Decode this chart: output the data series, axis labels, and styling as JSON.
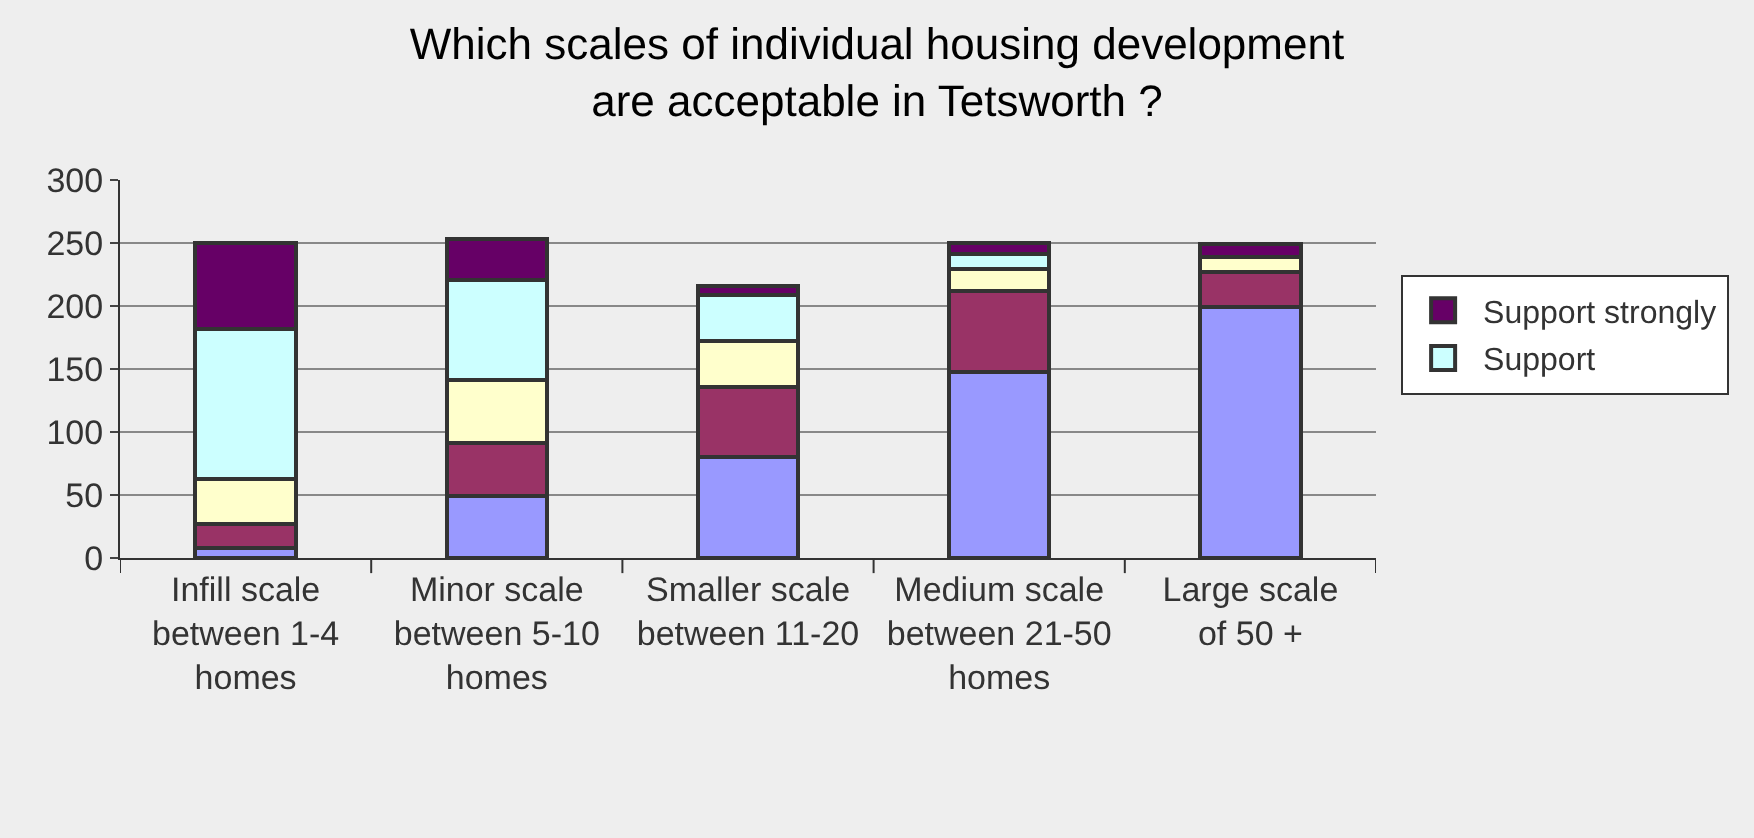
{
  "chart_data": {
    "type": "bar",
    "stacked": true,
    "title": "Which scales of individual housing development are acceptable in Tetsworth ?",
    "categories": [
      "Infill scale between 1-4 homes",
      "Minor scale between 5-10 homes",
      "Smaller scale between 11-20",
      "Medium scale between 21-50 homes",
      "Large scale of 50 +"
    ],
    "series": [
      {
        "color": "#9999ff",
        "values": [
          8,
          49,
          80,
          148,
          199
        ]
      },
      {
        "color": "#993366",
        "values": [
          19,
          42,
          56,
          64,
          28
        ]
      },
      {
        "color": "#ffffcc",
        "values": [
          36,
          50,
          36,
          17,
          12
        ]
      },
      {
        "name": "Support",
        "color": "#ccffff",
        "values": [
          119,
          80,
          37,
          12,
          0
        ]
      },
      {
        "name": "Support strongly",
        "color": "#660066",
        "values": [
          68,
          32,
          7,
          9,
          10
        ]
      }
    ],
    "ylim": [
      0,
      300
    ],
    "yticks": [
      0,
      50,
      100,
      150,
      200,
      250,
      300
    ],
    "grid": "y",
    "legend": "right"
  }
}
